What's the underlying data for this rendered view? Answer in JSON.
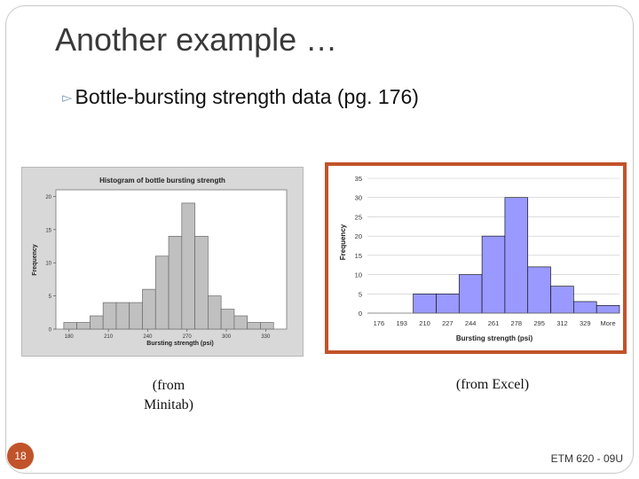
{
  "slide": {
    "title": "Another example …",
    "bullet": "Bottle-bursting strength data (pg. 176)",
    "caption_minitab_line1": "(from",
    "caption_minitab_line2": "Minitab)",
    "caption_excel": "(from Excel)",
    "page_number": "18",
    "footer": "ETM 620 - 09U",
    "accent_color": "#c1532a",
    "bullet_color": "#7f9fc4"
  },
  "chart_data": [
    {
      "type": "bar",
      "title": "Histogram of bottle bursting strength",
      "xlabel": "Bursting strength (psi)",
      "ylabel": "Frequency",
      "bin_edges": [
        176,
        186,
        196,
        206,
        216,
        226,
        236,
        246,
        256,
        266,
        276,
        286,
        296,
        306,
        316,
        326,
        336
      ],
      "values": [
        1,
        1,
        2,
        4,
        4,
        4,
        6,
        11,
        14,
        19,
        14,
        5,
        3,
        2,
        1,
        1
      ],
      "x_ticks": [
        180,
        210,
        240,
        270,
        300,
        330
      ],
      "y_ticks": [
        0,
        5,
        10,
        15,
        20
      ],
      "xlim": [
        170,
        346
      ],
      "ylim": [
        0,
        21
      ],
      "bar_color": "#c0c0c0",
      "grid": false
    },
    {
      "type": "bar",
      "categories": [
        "176",
        "193",
        "210",
        "227",
        "244",
        "261",
        "278",
        "295",
        "312",
        "329",
        "More"
      ],
      "values": [
        0,
        0,
        5,
        5,
        10,
        20,
        30,
        12,
        7,
        3,
        2
      ],
      "xlabel": "Bursting strength (psi)",
      "ylabel": "Frequency",
      "y_ticks": [
        0,
        5,
        10,
        15,
        20,
        25,
        30,
        35
      ],
      "ylim": [
        0,
        35
      ],
      "bar_color": "#9999ff",
      "grid": true
    }
  ]
}
